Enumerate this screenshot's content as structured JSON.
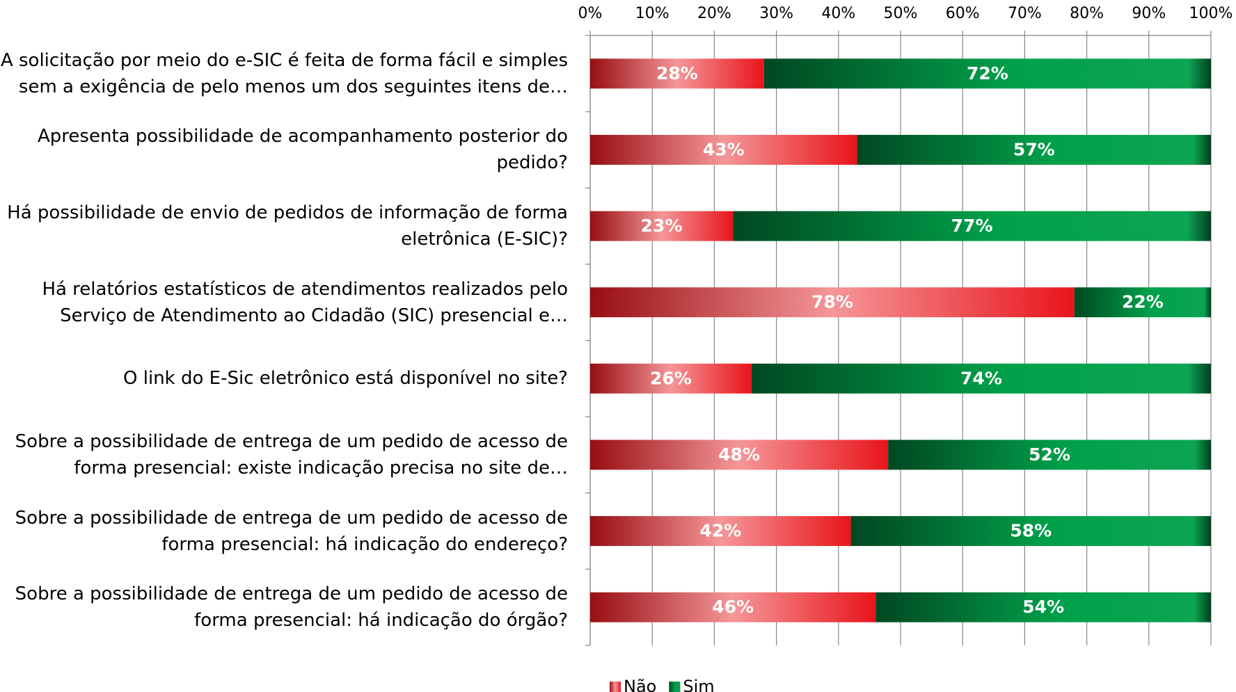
{
  "chart_data": {
    "type": "stacked_barh",
    "categories": [
      "A solicitação por meio do e-SIC é feita de forma fácil e simples sem a exigência de pelo menos um dos seguintes itens de…",
      "Apresenta possibilidade de acompanhamento posterior do pedido?",
      "Há possibilidade de envio de pedidos de informação de forma eletrônica (E-SIC)?",
      "Há relatórios estatísticos de atendimentos realizados pelo Serviço de Atendimento ao Cidadão (SIC) presencial e…",
      "O link do E-Sic eletrônico está disponível no site?",
      "Sobre a possibilidade de entrega de um pedido de acesso de forma presencial: existe indicação precisa no site de…",
      "Sobre a possibilidade de entrega de um pedido de acesso de forma presencial: há indicação do endereço?",
      "Sobre a possibilidade de entrega de um pedido de acesso de forma presencial: há indicação do órgão?"
    ],
    "series": [
      {
        "name": "Não",
        "color": "#e8151b",
        "values": [
          28,
          43,
          23,
          78,
          26,
          48,
          42,
          46
        ],
        "value_labels": [
          "28%",
          "43%",
          "23%",
          "78%",
          "26%",
          "48%",
          "42%",
          "46%"
        ]
      },
      {
        "name": "Sim",
        "color": "#00a04a",
        "values": [
          72,
          57,
          77,
          22,
          74,
          52,
          58,
          54
        ],
        "value_labels": [
          "72%",
          "57%",
          "77%",
          "22%",
          "74%",
          "52%",
          "58%",
          "54%"
        ]
      }
    ],
    "xlim": [
      0,
      100
    ],
    "xticks": [
      {
        "value": 0,
        "label": "0%"
      },
      {
        "value": 10,
        "label": "10%"
      },
      {
        "value": 20,
        "label": "20%"
      },
      {
        "value": 30,
        "label": "30%"
      },
      {
        "value": 40,
        "label": "40%"
      },
      {
        "value": 50,
        "label": "50%"
      },
      {
        "value": 60,
        "label": "60%"
      },
      {
        "value": 70,
        "label": "70%"
      },
      {
        "value": 80,
        "label": "80%"
      },
      {
        "value": 90,
        "label": "90%"
      },
      {
        "value": 100,
        "label": "100%"
      }
    ],
    "grid": true,
    "legend": "bottom"
  }
}
